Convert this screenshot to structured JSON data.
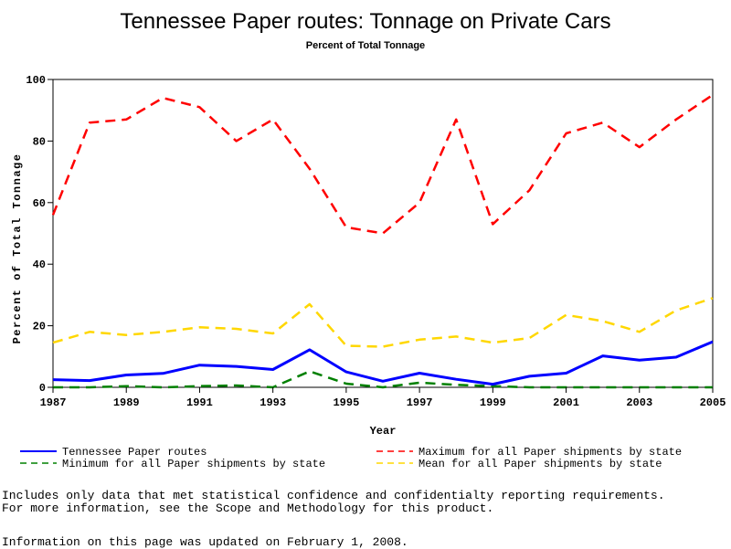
{
  "chart_data": {
    "type": "line",
    "title": "Tennessee Paper routes: Tonnage on Private Cars",
    "subtitle": "Percent of Total Tonnage",
    "xlabel": "Year",
    "ylabel": "Percent of Total Tonnage",
    "xlim": [
      1987,
      2005
    ],
    "ylim": [
      0,
      100
    ],
    "xticks": [
      "1987",
      "1989",
      "1991",
      "1993",
      "1995",
      "1997",
      "1999",
      "2001",
      "2003",
      "2005"
    ],
    "yticks": [
      "0",
      "20",
      "40",
      "60",
      "80",
      "100"
    ],
    "grid": false,
    "legend_position": "bottom",
    "x": [
      1987,
      1988,
      1989,
      1990,
      1991,
      1992,
      1993,
      1994,
      1995,
      1996,
      1997,
      1998,
      1999,
      2000,
      2001,
      2002,
      2003,
      2004,
      2005
    ],
    "series": [
      {
        "name": "Tennessee Paper routes",
        "color": "#0000ff",
        "style": "solid",
        "values": [
          2.5,
          2.2,
          4,
          4.5,
          7.2,
          6.8,
          5.8,
          12.2,
          5,
          2,
          4.6,
          2.6,
          1,
          3.6,
          4.6,
          10.2,
          8.8,
          9.8,
          14.8
        ]
      },
      {
        "name": "Maximum for all Paper shipments by state",
        "color": "#ff0000",
        "style": "dashed",
        "values": [
          56,
          86,
          87,
          94,
          91,
          80,
          87,
          71,
          52,
          50,
          60,
          87,
          53,
          64,
          82.5,
          86,
          78,
          87,
          95
        ]
      },
      {
        "name": "Minimum for all Paper shipments by state",
        "color": "#008000",
        "style": "dashed",
        "values": [
          0,
          0,
          0.4,
          0,
          0.4,
          0.6,
          0,
          5.2,
          1.2,
          0,
          1.5,
          0.8,
          0.4,
          0,
          0,
          0,
          0,
          0,
          0
        ]
      },
      {
        "name": "Mean for all Paper shipments by state",
        "color": "#ffd700",
        "style": "dashed",
        "values": [
          14.5,
          18,
          17,
          18,
          19.5,
          19,
          17.5,
          27,
          13.5,
          13.2,
          15.5,
          16.5,
          14.5,
          16,
          23.5,
          21.5,
          18,
          25,
          29
        ]
      }
    ]
  },
  "notes": {
    "line1": "Includes only data that met statistical confidence and confidentialty reporting requirements.",
    "line2": "For more information, see the Scope and Methodology for this product.",
    "updated": "Information on this page was updated on February 1, 2008."
  }
}
